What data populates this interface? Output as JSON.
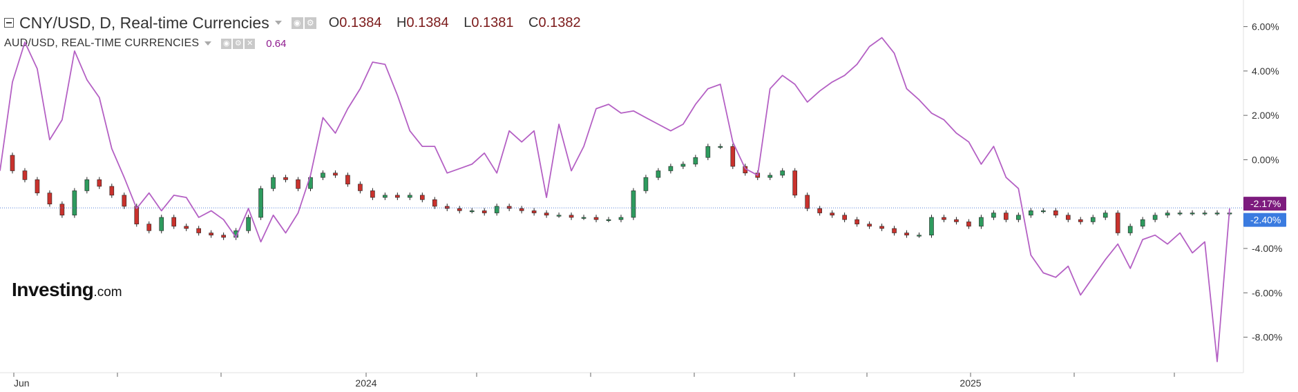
{
  "header": {
    "main_title": "CNY/USD, D, Real-time Currencies",
    "ohlc": {
      "o_label": "O",
      "o": "0.1384",
      "h_label": "H",
      "h": "0.1384",
      "l_label": "L",
      "l": "0.1381",
      "c_label": "C",
      "c": "0.1382"
    },
    "indicator_title": "AUD/USD, REAL-TIME CURRENCIES",
    "indicator_value": "0.64"
  },
  "logo": {
    "name": "Investing",
    "suffix": ".com"
  },
  "icons": [
    "collapse-icon",
    "caret-down-icon",
    "eye-icon",
    "gear-icon",
    "close-icon"
  ],
  "colors": {
    "up_candle": "#2e9b5e",
    "down_candle": "#c9322d",
    "audusd_line": "#b460c4",
    "current_line": "#3a6fd1",
    "tag_audusd": "#7d1b7e",
    "tag_cnyusd": "#3a7be0"
  },
  "chart_data": {
    "type": "line",
    "y_unit": "% change",
    "yticks": [
      "6.00%",
      "4.00%",
      "2.00%",
      "0.00%",
      "-4.00%",
      "-6.00%",
      "-8.00%"
    ],
    "ylim": [
      -9.6,
      7.2
    ],
    "xticks": [
      "Jun",
      "2024",
      "2025"
    ],
    "current_tags": [
      {
        "series": "AUD/USD",
        "label": "-2.17%",
        "value": -2.17
      },
      {
        "series": "CNY/USD",
        "label": "-2.40%",
        "value": -2.4
      }
    ],
    "series": [
      {
        "name": "AUD/USD, REAL-TIME CURRENCIES",
        "style": "line",
        "x": [
          0,
          5,
          10,
          15,
          20,
          25,
          30,
          35,
          40,
          45,
          50,
          55,
          60,
          65,
          70,
          75,
          80,
          85,
          90,
          95,
          100,
          105,
          110,
          115,
          120,
          125,
          130,
          135,
          140,
          145,
          150,
          155,
          160,
          165,
          170,
          175,
          180,
          185,
          190,
          195,
          200,
          205,
          210,
          215,
          220,
          225,
          230,
          235,
          240,
          245,
          250,
          255,
          260,
          265,
          270,
          275,
          280,
          285,
          290,
          295,
          300,
          305,
          310,
          315,
          320,
          325,
          330,
          335,
          340,
          345,
          350,
          355,
          360,
          365,
          370,
          375,
          380,
          385,
          390,
          395,
          400,
          405,
          410,
          415,
          420,
          425,
          430,
          435,
          440,
          445,
          450,
          455,
          460,
          465,
          470,
          475,
          480,
          485,
          490,
          495
        ],
        "y": [
          -0.5,
          3.5,
          5.3,
          4.1,
          0.9,
          1.8,
          4.9,
          3.6,
          2.8,
          0.5,
          -0.8,
          -2.2,
          -1.5,
          -2.3,
          -1.6,
          -1.7,
          -2.6,
          -2.3,
          -2.7,
          -3.5,
          -2.2,
          -3.7,
          -2.5,
          -3.3,
          -2.4,
          -0.7,
          1.9,
          1.2,
          2.3,
          3.2,
          4.4,
          4.3,
          2.9,
          1.3,
          0.6,
          0.6,
          -0.6,
          -0.4,
          -0.2,
          0.3,
          -0.6,
          1.3,
          0.8,
          1.3,
          -1.7,
          1.6,
          -0.5,
          0.6,
          2.3,
          2.5,
          2.1,
          2.2,
          1.9,
          1.6,
          1.3,
          1.6,
          2.5,
          3.2,
          3.4,
          0.8,
          -0.4,
          -0.7,
          3.2,
          3.8,
          3.4,
          2.6,
          3.1,
          3.5,
          3.8,
          4.3,
          5.1,
          5.5,
          4.8,
          3.2,
          2.7,
          2.1,
          1.8,
          1.2,
          0.8,
          -0.2,
          0.6,
          -0.8,
          -1.3,
          -4.3,
          -5.1,
          -5.3,
          -4.8,
          -6.1,
          -5.3,
          -4.5,
          -3.8,
          -4.9,
          -3.6,
          -3.4,
          -3.8,
          -3.3,
          -4.2,
          -3.7,
          -9.1,
          -2.2
        ],
        "last_value": -2.17
      },
      {
        "name": "CNY/USD, D, Real-time Currencies",
        "style": "candlestick",
        "x": [
          0,
          5,
          10,
          15,
          20,
          25,
          30,
          35,
          40,
          45,
          50,
          55,
          60,
          65,
          70,
          75,
          80,
          85,
          90,
          95,
          100,
          105,
          110,
          115,
          120,
          125,
          130,
          135,
          140,
          145,
          150,
          155,
          160,
          165,
          170,
          175,
          180,
          185,
          190,
          195,
          200,
          205,
          210,
          215,
          220,
          225,
          230,
          235,
          240,
          245,
          250,
          255,
          260,
          265,
          270,
          275,
          280,
          285,
          290,
          295,
          300,
          305,
          310,
          315,
          320,
          325,
          330,
          335,
          340,
          345,
          350,
          355,
          360,
          365,
          370,
          375,
          380,
          385,
          390,
          395,
          400,
          405,
          410,
          415,
          420,
          425,
          430,
          435,
          440,
          445,
          450,
          455,
          460,
          465,
          470,
          475,
          480,
          485,
          490,
          495
        ],
        "close": [
          0.2,
          -0.5,
          -0.9,
          -1.5,
          -2.0,
          -2.5,
          -1.4,
          -0.9,
          -1.2,
          -1.6,
          -2.1,
          -2.9,
          -3.2,
          -2.6,
          -3.0,
          -3.1,
          -3.3,
          -3.4,
          -3.5,
          -3.2,
          -2.6,
          -1.3,
          -0.8,
          -0.9,
          -1.3,
          -0.8,
          -0.6,
          -0.7,
          -1.1,
          -1.4,
          -1.7,
          -1.6,
          -1.7,
          -1.6,
          -1.8,
          -2.1,
          -2.2,
          -2.3,
          -2.3,
          -2.4,
          -2.1,
          -2.2,
          -2.3,
          -2.4,
          -2.5,
          -2.5,
          -2.6,
          -2.6,
          -2.7,
          -2.7,
          -2.6,
          -1.4,
          -0.8,
          -0.5,
          -0.3,
          -0.2,
          0.1,
          0.6,
          0.6,
          -0.3,
          -0.6,
          -0.8,
          -0.7,
          -0.5,
          -1.6,
          -2.2,
          -2.4,
          -2.5,
          -2.7,
          -2.9,
          -3.0,
          -3.1,
          -3.3,
          -3.4,
          -3.4,
          -2.6,
          -2.7,
          -2.8,
          -3.0,
          -2.6,
          -2.4,
          -2.7,
          -2.5,
          -2.3,
          -2.3,
          -2.5,
          -2.7,
          -2.8,
          -2.6,
          -2.4,
          -3.3,
          -3.0,
          -2.7,
          -2.5,
          -2.4,
          -2.4,
          -2.4,
          -2.4,
          -2.4,
          -2.4
        ],
        "last_value": -2.4
      }
    ],
    "grid": false,
    "legend": "top-left"
  }
}
